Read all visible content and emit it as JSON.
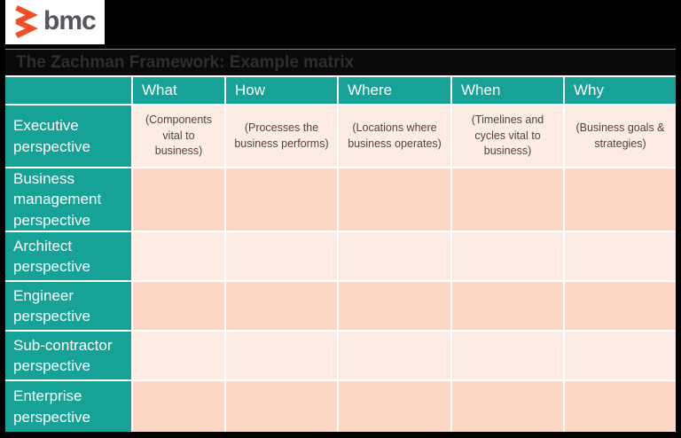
{
  "brand": {
    "logo_text": "bmc",
    "logo_icon": "bmc-double-chevron-icon"
  },
  "title": "The Zachman Framework: Example matrix",
  "table": {
    "column_headers": [
      "What",
      "How",
      "Where",
      "When",
      "Why"
    ],
    "rows": [
      {
        "label": "Executive perspective",
        "cells": [
          "(Components vital to business)",
          "(Processes the business performs)",
          "(Locations where business operates)",
          "(Timelines and cycles vital to business)",
          "(Business goals & strategies)"
        ]
      },
      {
        "label": "Business management perspective",
        "cells": [
          "",
          "",
          "",
          "",
          ""
        ]
      },
      {
        "label": "Architect perspective",
        "cells": [
          "",
          "",
          "",
          "",
          ""
        ]
      },
      {
        "label": "Engineer perspective",
        "cells": [
          "",
          "",
          "",
          "",
          ""
        ]
      },
      {
        "label": "Sub-contractor perspective",
        "cells": [
          "",
          "",
          "",
          "",
          ""
        ]
      },
      {
        "label": "Enterprise perspective",
        "cells": [
          "",
          "",
          "",
          "",
          ""
        ]
      }
    ]
  },
  "colors": {
    "teal": "#16a296",
    "row_light": "#fdece4",
    "row_dark": "#fbd7c4",
    "brand_orange": "#f04e26",
    "logo_gray": "#53565a",
    "title_text": "#2e2e2e",
    "background": "#000000"
  }
}
